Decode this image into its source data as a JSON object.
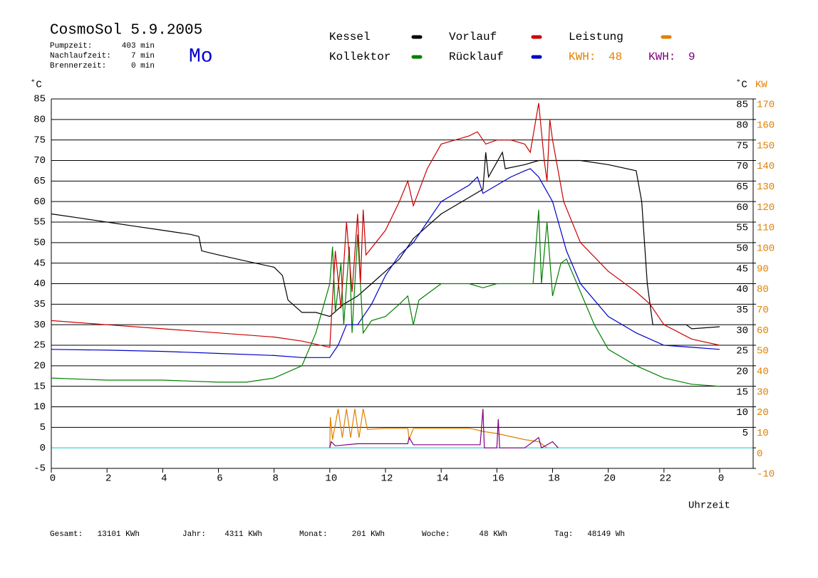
{
  "chart_data": {
    "type": "line",
    "title": "CosmoSol 5.9.2005",
    "day": "Mo",
    "info": [
      {
        "label": "Pumpzeit:",
        "value": "403 min"
      },
      {
        "label": "Nachlaufzeit:",
        "value": "7 min"
      },
      {
        "label": "Brennerzeit:",
        "value": "0 min"
      }
    ],
    "energy": [
      {
        "label": "KWH:",
        "value": 48,
        "color": "#e08000"
      },
      {
        "label": "KWH:",
        "value": 9,
        "color": "#800080"
      }
    ],
    "x_label": "Uhrzeit",
    "y_label": "˚C",
    "y_right_label": "˚C",
    "y2_label": "KW",
    "xlim": [
      0,
      24
    ],
    "xticks": [
      0,
      2,
      4,
      6,
      8,
      10,
      12,
      14,
      16,
      18,
      20,
      22,
      {
        "value": 24,
        "label": "0"
      }
    ],
    "ylim": [
      -5,
      85
    ],
    "yticks": [
      -5,
      0,
      5,
      10,
      15,
      20,
      25,
      30,
      35,
      40,
      45,
      50,
      55,
      60,
      65,
      70,
      75,
      80,
      85
    ],
    "yticks_right": [
      5,
      10,
      15,
      20,
      25,
      30,
      35,
      40,
      45,
      50,
      55,
      60,
      65,
      70,
      75,
      80,
      85
    ],
    "y2lim": [
      -10,
      170
    ],
    "y2ticks": [
      -10,
      0,
      10,
      20,
      30,
      40,
      50,
      60,
      70,
      80,
      90,
      100,
      110,
      120,
      130,
      140,
      150,
      160,
      170
    ],
    "grid": true,
    "zero_line_color": "#00cccc",
    "series": [
      {
        "name": "Kessel",
        "color": "#000000",
        "x": [
          0,
          1,
          2,
          3,
          4,
          5,
          5.3,
          5.4,
          6,
          7,
          8,
          8.3,
          8.5,
          9,
          9.5,
          10,
          10.5,
          11,
          11.5,
          12,
          12.5,
          13,
          13.5,
          14,
          15,
          15.5,
          15.6,
          15.7,
          16.2,
          16.3,
          17,
          17.5,
          18,
          19,
          20,
          21,
          21.2,
          21.4,
          21.6,
          22,
          22.8,
          23,
          24
        ],
        "values": [
          57,
          56,
          55,
          54,
          53,
          52,
          51.5,
          48,
          47,
          45.5,
          44,
          42,
          36,
          33,
          33,
          32,
          35,
          37,
          40,
          43,
          46,
          51,
          54,
          57,
          61,
          63,
          72,
          66,
          72,
          68,
          69,
          70,
          70,
          70,
          69,
          67.5,
          60,
          40,
          30,
          30,
          30,
          29,
          29.5
        ]
      },
      {
        "name": "Kollektor",
        "color": "#008000",
        "x": [
          0,
          2,
          4,
          6,
          7,
          8,
          9,
          9.5,
          10,
          10.1,
          10.2,
          10.4,
          10.5,
          10.7,
          10.8,
          11,
          11.2,
          11.5,
          12,
          12.5,
          12.8,
          13,
          13.2,
          14,
          15,
          15.5,
          16,
          16.5,
          17,
          17.3,
          17.5,
          17.6,
          17.8,
          18,
          18.3,
          18.5,
          19,
          19.5,
          20,
          21,
          22,
          23,
          24
        ],
        "values": [
          17,
          16.5,
          16.5,
          16,
          16,
          17,
          20,
          28,
          40,
          49,
          33,
          45,
          30,
          49,
          28,
          52,
          28,
          31,
          32,
          35,
          37,
          30,
          36,
          40,
          40,
          39,
          40,
          40,
          40,
          40,
          58,
          40,
          55,
          37,
          45,
          46,
          38,
          30,
          24,
          20,
          17,
          15.5,
          15
        ]
      },
      {
        "name": "Vorlauf",
        "color": "#cc0000",
        "x": [
          0,
          2,
          4,
          6,
          8,
          9,
          10,
          10.2,
          10.4,
          10.6,
          10.8,
          11,
          11.1,
          11.2,
          11.3,
          12,
          12.5,
          12.8,
          13,
          13.5,
          14,
          14.5,
          15,
          15.3,
          15.6,
          16,
          16.5,
          17,
          17.2,
          17.5,
          17.7,
          17.8,
          17.9,
          18,
          18.4,
          19,
          20,
          21,
          21.5,
          22,
          23,
          24
        ],
        "values": [
          31,
          30,
          29,
          28,
          27,
          26,
          24.5,
          48,
          34,
          55,
          38,
          57,
          40,
          58,
          47,
          53,
          60,
          65,
          59,
          68,
          74,
          75,
          76,
          77,
          74,
          75,
          75,
          74,
          72,
          84,
          70,
          65,
          80,
          75,
          60,
          50,
          43,
          38,
          35,
          30,
          26.5,
          25
        ]
      },
      {
        "name": "Rücklauf",
        "color": "#0000cc",
        "x": [
          0,
          2,
          4,
          6,
          8,
          9,
          10,
          10.3,
          10.6,
          11,
          11.5,
          12,
          12.5,
          13,
          13.5,
          14,
          15,
          15.3,
          15.5,
          16,
          16.5,
          17,
          17.2,
          17.5,
          18,
          18.5,
          19,
          20,
          21,
          22,
          23,
          24
        ],
        "values": [
          24,
          23.8,
          23.5,
          23,
          22.5,
          22,
          22,
          25,
          30,
          30,
          35,
          42,
          47,
          50,
          55,
          60,
          64,
          66,
          62,
          64,
          66,
          67.5,
          68,
          66,
          60,
          48,
          40,
          32,
          28,
          25,
          24.5,
          24
        ]
      },
      {
        "name": "Leistung",
        "color": "#e08000",
        "axis": "y2",
        "x": [
          10,
          10.02,
          10.1,
          10.3,
          10.45,
          10.6,
          10.75,
          10.9,
          11.05,
          11.2,
          11.35,
          12,
          12.8,
          12.85,
          13,
          14,
          15,
          15.2,
          15.5,
          16,
          17,
          17.5,
          17.8
        ],
        "values": [
          0,
          15,
          4,
          19,
          5,
          19,
          5,
          19,
          5,
          19,
          9,
          9.5,
          9.5,
          4,
          9.5,
          9.5,
          9.5,
          9,
          8,
          7,
          4,
          3,
          0
        ]
      },
      {
        "color": "#800080",
        "axis": "y2",
        "x": [
          10,
          10.05,
          10.2,
          11,
          12,
          12.8,
          12.85,
          13,
          15.4,
          15.5,
          15.55,
          16,
          16.05,
          16.1,
          17,
          17.5,
          17.6,
          18,
          18.2
        ],
        "values": [
          0,
          3,
          1,
          2,
          2,
          2,
          5,
          1.5,
          1.5,
          19,
          0,
          0,
          14,
          0,
          0,
          5,
          0,
          3,
          0
        ]
      }
    ],
    "totals": [
      {
        "label": "Gesamt:",
        "value": "13101 KWh"
      },
      {
        "label": "Jahr:",
        "value": "4311 KWh"
      },
      {
        "label": "Monat:",
        "value": "201 KWh"
      },
      {
        "label": "Woche:",
        "value": "48 KWh"
      },
      {
        "label": "Tag:",
        "value": "48149 Wh"
      }
    ]
  }
}
